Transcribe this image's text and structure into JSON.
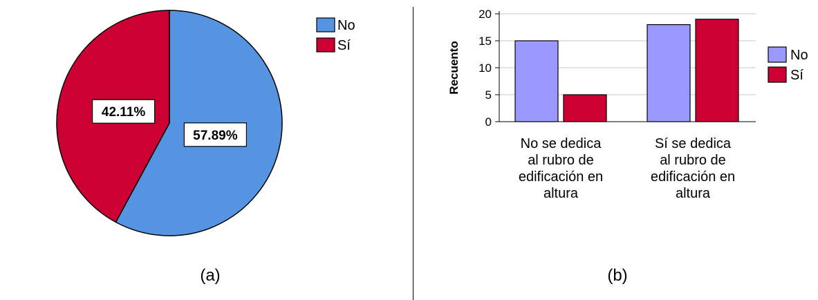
{
  "colors": {
    "pie_no": "#5594e1",
    "pie_si": "#cc0033",
    "bar_no": "#9999ff",
    "bar_si": "#cc0033",
    "outline": "#000000",
    "grid": "#c8c8c8",
    "divider": "#000000"
  },
  "chart_data": [
    {
      "type": "pie",
      "panel_label": "(a)",
      "slices": [
        {
          "name": "No",
          "value": 57.89,
          "label": "57.89%"
        },
        {
          "name": "Sí",
          "value": 42.11,
          "label": "42.11%"
        }
      ],
      "legend": [
        "No",
        "Sí"
      ],
      "legend_position": "top-right"
    },
    {
      "type": "bar",
      "panel_label": "(b)",
      "categories": [
        [
          "No se dedica",
          "al rubro de",
          "edificación en",
          "altura"
        ],
        [
          "Sí se dedica",
          "al rubro de",
          "edificación en",
          "altura"
        ]
      ],
      "series": [
        {
          "name": "No",
          "values": [
            15,
            18
          ]
        },
        {
          "name": "Sí",
          "values": [
            5,
            19
          ]
        }
      ],
      "ylabel": "Recuento",
      "ylim": [
        0,
        20
      ],
      "yticks": [
        0,
        5,
        10,
        15,
        20
      ],
      "grid": true,
      "legend": [
        "No",
        "Sí"
      ],
      "legend_position": "right"
    }
  ]
}
